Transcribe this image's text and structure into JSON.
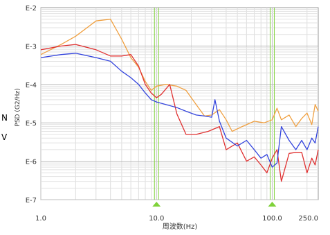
{
  "chart_data": {
    "type": "line",
    "xlabel": "周波数(Hz)",
    "ylabel": "PSD (G2/Hz)",
    "x_scale": "log",
    "y_scale": "log",
    "xlim": [
      1.0,
      250.0
    ],
    "ylim": [
      1e-07,
      0.01
    ],
    "x_ticks": [
      {
        "value": 1.0,
        "label": "1.0"
      },
      {
        "value": 10,
        "label": "10.0"
      },
      {
        "value": 100,
        "label": "100.0"
      },
      {
        "value": 250,
        "label": "250.0"
      }
    ],
    "y_ticks": [
      {
        "value": 0.01,
        "label": "E-2"
      },
      {
        "value": 0.001,
        "label": "E-3"
      },
      {
        "value": 0.0001,
        "label": "E-4"
      },
      {
        "value": 1e-05,
        "label": "E-5"
      },
      {
        "value": 1e-06,
        "label": "E-6"
      },
      {
        "value": 1e-07,
        "label": "E-7"
      }
    ],
    "grid": true,
    "markers": [
      {
        "x": 10.0,
        "color": "#7fd23a"
      },
      {
        "x": 100.0,
        "color": "#7fd23a"
      }
    ],
    "series": [
      {
        "color": "#f0a040",
        "points": [
          [
            1.0,
            0.0006
          ],
          [
            1.5,
            0.0011
          ],
          [
            2.0,
            0.0018
          ],
          [
            3.0,
            0.0045
          ],
          [
            4.0,
            0.005
          ],
          [
            5.0,
            0.0015
          ],
          [
            6.0,
            0.0005
          ],
          [
            7.0,
            0.00028
          ],
          [
            8.0,
            0.00012
          ],
          [
            9.0,
            7e-05
          ],
          [
            10.0,
            9e-05
          ],
          [
            12.0,
            0.0001
          ],
          [
            15.0,
            9e-05
          ],
          [
            18.0,
            7e-05
          ],
          [
            22.0,
            3e-05
          ],
          [
            26.0,
            1.5e-05
          ],
          [
            30.0,
            1.6e-05
          ],
          [
            35.0,
            2.2e-05
          ],
          [
            40.0,
            1.2e-05
          ],
          [
            45.0,
            6e-06
          ],
          [
            55.0,
            8e-06
          ],
          [
            70.0,
            1.1e-05
          ],
          [
            85.0,
            1e-05
          ],
          [
            100.0,
            1.2e-05
          ],
          [
            110.0,
            2.4e-05
          ],
          [
            120.0,
            1.2e-05
          ],
          [
            140.0,
            1.6e-05
          ],
          [
            160.0,
            8e-06
          ],
          [
            180.0,
            1.3e-05
          ],
          [
            200.0,
            1.8e-05
          ],
          [
            220.0,
            9e-06
          ],
          [
            235.0,
            3e-05
          ],
          [
            250.0,
            2e-05
          ]
        ]
      },
      {
        "color": "#e03030",
        "points": [
          [
            1.0,
            0.0008
          ],
          [
            1.5,
            0.001
          ],
          [
            2.0,
            0.0011
          ],
          [
            3.0,
            0.0008
          ],
          [
            4.0,
            0.00055
          ],
          [
            5.0,
            0.00055
          ],
          [
            6.0,
            0.0006
          ],
          [
            7.0,
            0.0003
          ],
          [
            8.0,
            0.0001
          ],
          [
            9.0,
            6e-05
          ],
          [
            10.0,
            4.5e-05
          ],
          [
            11.0,
            5.5e-05
          ],
          [
            13.0,
            0.0001
          ],
          [
            15.0,
            1.7e-05
          ],
          [
            18.0,
            5e-06
          ],
          [
            22.0,
            5e-06
          ],
          [
            28.0,
            6e-06
          ],
          [
            35.0,
            8e-06
          ],
          [
            40.0,
            2e-06
          ],
          [
            50.0,
            3e-06
          ],
          [
            60.0,
            1e-06
          ],
          [
            70.0,
            1.3e-06
          ],
          [
            80.0,
            8e-07
          ],
          [
            90.0,
            5e-07
          ],
          [
            100.0,
            1.2e-06
          ],
          [
            110.0,
            2e-06
          ],
          [
            120.0,
            3e-07
          ],
          [
            140.0,
            1.6e-06
          ],
          [
            160.0,
            1.7e-06
          ],
          [
            180.0,
            1.7e-06
          ],
          [
            200.0,
            5e-07
          ],
          [
            220.0,
            1.2e-06
          ],
          [
            235.0,
            8e-07
          ],
          [
            250.0,
            2e-06
          ]
        ]
      },
      {
        "color": "#3344dd",
        "points": [
          [
            1.0,
            0.0005
          ],
          [
            1.5,
            0.0006
          ],
          [
            2.0,
            0.00065
          ],
          [
            3.0,
            0.0005
          ],
          [
            4.0,
            0.0004
          ],
          [
            5.0,
            0.00022
          ],
          [
            6.0,
            0.00015
          ],
          [
            7.0,
            0.0001
          ],
          [
            8.0,
            6e-05
          ],
          [
            9.0,
            4e-05
          ],
          [
            10.0,
            3.5e-05
          ],
          [
            12.0,
            3e-05
          ],
          [
            15.0,
            2.5e-05
          ],
          [
            18.0,
            2e-05
          ],
          [
            22.0,
            1.6e-05
          ],
          [
            26.0,
            1.5e-05
          ],
          [
            30.0,
            1.4e-05
          ],
          [
            32.0,
            4e-05
          ],
          [
            35.0,
            1.1e-05
          ],
          [
            40.0,
            4e-06
          ],
          [
            50.0,
            2.5e-06
          ],
          [
            60.0,
            3.5e-06
          ],
          [
            70.0,
            2e-06
          ],
          [
            80.0,
            1.2e-06
          ],
          [
            90.0,
            1.5e-06
          ],
          [
            100.0,
            7e-07
          ],
          [
            110.0,
            9e-07
          ],
          [
            120.0,
            8e-06
          ],
          [
            140.0,
            3.5e-06
          ],
          [
            160.0,
            2e-06
          ],
          [
            180.0,
            3.5e-06
          ],
          [
            200.0,
            2e-06
          ],
          [
            220.0,
            4e-06
          ],
          [
            235.0,
            3e-06
          ],
          [
            250.0,
            8e-06
          ]
        ]
      }
    ]
  },
  "side_glyphs": [
    "N",
    "V"
  ]
}
